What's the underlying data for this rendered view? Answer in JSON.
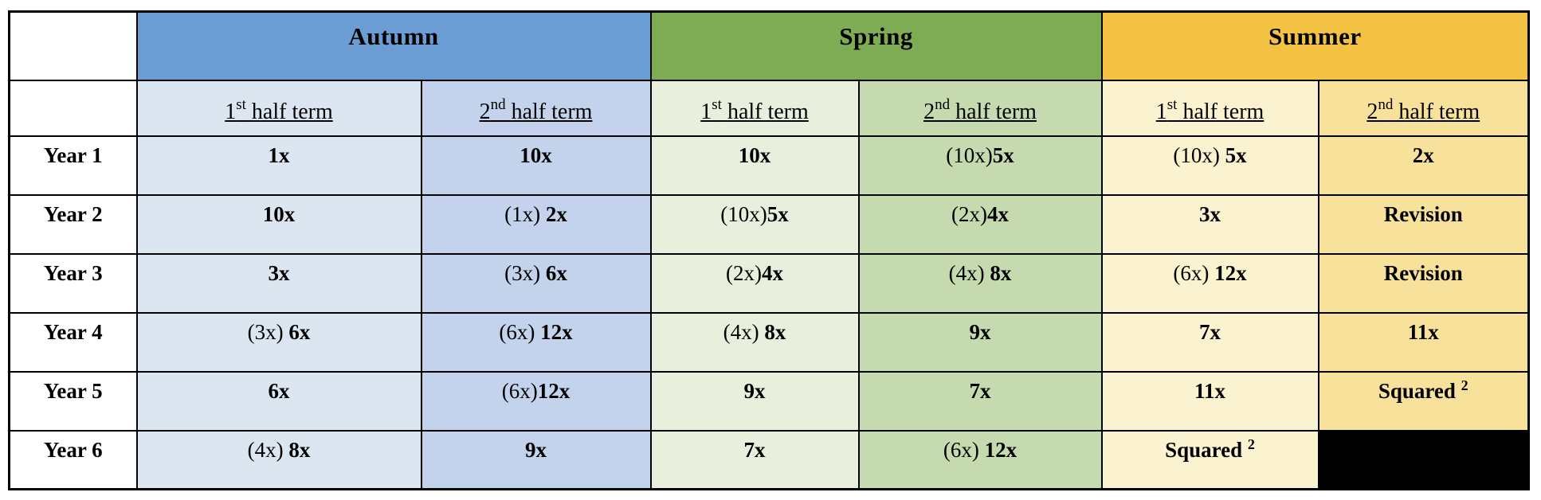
{
  "table": {
    "title": "times-tables-teaching-schedule",
    "corner": "",
    "seasons": [
      {
        "label": "Autumn",
        "color": "#6B9CD3",
        "tint_first": "#DCE6F1",
        "tint_second": "#C2D3EB"
      },
      {
        "label": "Spring",
        "color": "#7DAC55",
        "tint_first": "#E8EFDD",
        "tint_second": "#C5DBAF"
      },
      {
        "label": "Summer",
        "color": "#F4C243",
        "tint_first": "#FBF2CF",
        "tint_second": "#F8E29B"
      }
    ],
    "half_terms": {
      "first": {
        "num": "1",
        "sup": "st",
        "rest": " half term"
      },
      "second": {
        "num": "2",
        "sup": "nd",
        "rest": " half term"
      }
    },
    "colors": {
      "border": "#000000",
      "blocked_cell": "#000000",
      "text": "#000000",
      "background": "#ffffff"
    },
    "rows": [
      {
        "year": "Year 1",
        "cells": [
          {
            "pre": "",
            "main": "1x"
          },
          {
            "pre": "",
            "main": "10x"
          },
          {
            "pre": "",
            "main": "10x"
          },
          {
            "pre": "(10x)",
            "main": "5x"
          },
          {
            "pre": "(10x) ",
            "main": "5x"
          },
          {
            "pre": "",
            "main": "2x"
          }
        ]
      },
      {
        "year": "Year 2",
        "cells": [
          {
            "pre": "",
            "main": "10x"
          },
          {
            "pre": "(1x) ",
            "main": "2x"
          },
          {
            "pre": "(10x)",
            "main": "5x"
          },
          {
            "pre": "(2x)",
            "main": "4x"
          },
          {
            "pre": "",
            "main": "3x"
          },
          {
            "pre": "",
            "main": "Revision"
          }
        ]
      },
      {
        "year": "Year 3",
        "cells": [
          {
            "pre": "",
            "main": "3x"
          },
          {
            "pre": "(3x) ",
            "main": "6x"
          },
          {
            "pre": "(2x)",
            "main": "4x"
          },
          {
            "pre": "(4x) ",
            "main": "8x"
          },
          {
            "pre": "(6x) ",
            "main": "12x"
          },
          {
            "pre": "",
            "main": "Revision"
          }
        ]
      },
      {
        "year": "Year 4",
        "cells": [
          {
            "pre": "(3x) ",
            "main": "6x"
          },
          {
            "pre": "(6x) ",
            "main": "12x"
          },
          {
            "pre": "(4x) ",
            "main": "8x"
          },
          {
            "pre": "",
            "main": "9x"
          },
          {
            "pre": "",
            "main": "7x"
          },
          {
            "pre": "",
            "main": "11x"
          }
        ]
      },
      {
        "year": "Year 5",
        "cells": [
          {
            "pre": "",
            "main": "6x"
          },
          {
            "pre": "(6x)",
            "main": "12x"
          },
          {
            "pre": "",
            "main": "9x"
          },
          {
            "pre": "",
            "main": "7x"
          },
          {
            "pre": "",
            "main": "11x"
          },
          {
            "pre": "",
            "main": "Squared ",
            "sup": "2"
          }
        ]
      },
      {
        "year": "Year 6",
        "cells": [
          {
            "pre": "(4x) ",
            "main": "8x"
          },
          {
            "pre": "",
            "main": "9x"
          },
          {
            "pre": "",
            "main": "7x"
          },
          {
            "pre": "(6x) ",
            "main": "12x"
          },
          {
            "pre": "",
            "main": "Squared ",
            "sup": "2"
          },
          {
            "blocked": true,
            "pre": "",
            "main": ""
          }
        ]
      }
    ]
  }
}
